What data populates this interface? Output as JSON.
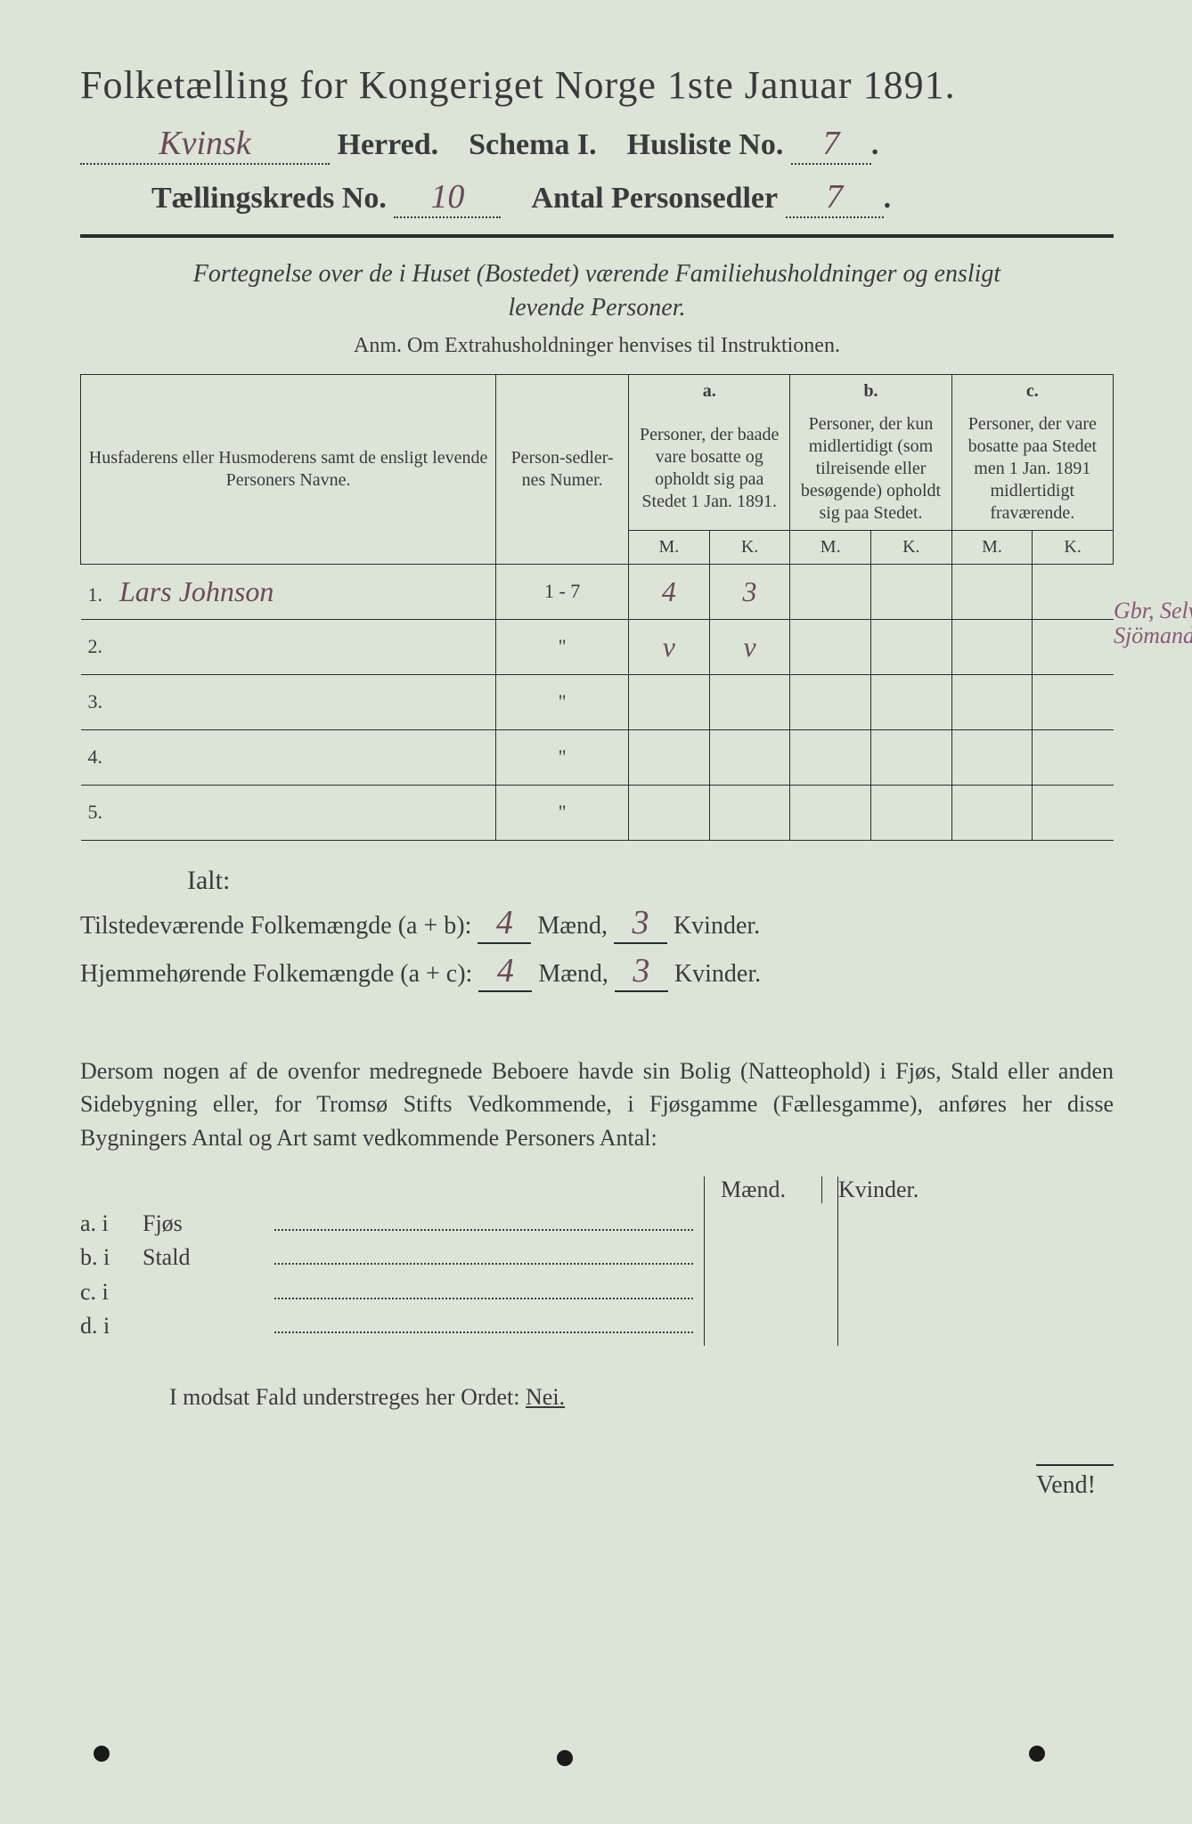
{
  "page": {
    "bg": "#dce4d8",
    "ink": "#3a3a3a",
    "hand_ink": "#6b4a55"
  },
  "header": {
    "title": "Folketælling for Kongeriget Norge 1ste Januar 1891.",
    "herred_hand": "Kvinsk",
    "herred_label": "Herred.",
    "schema": "Schema I.",
    "husliste_label": "Husliste No.",
    "husliste_no": "7",
    "kreds_label": "Tællingskreds No.",
    "kreds_no": "10",
    "sedler_label": "Antal Personsedler",
    "sedler_no": "7"
  },
  "intro": {
    "line1": "Fortegnelse over de i Huset (Bostedet) værende Familiehusholdninger og ensligt",
    "line2": "levende Personer.",
    "anm": "Anm.  Om Extrahusholdninger henvises til Instruktionen."
  },
  "table": {
    "head": {
      "names": "Husfaderens eller Husmoderens samt de ensligt levende Personers Navne.",
      "num": "Person-sedler-nes Numer.",
      "a_top": "a.",
      "a": "Personer, der baade vare bosatte og opholdt sig paa Stedet 1 Jan. 1891.",
      "b_top": "b.",
      "b": "Personer, der kun midlertidigt (som tilreisende eller besøgende) opholdt sig paa Stedet.",
      "c_top": "c.",
      "c": "Personer, der vare bosatte paa Stedet men 1 Jan. 1891 midlertidigt fraværende.",
      "M": "M.",
      "K": "K."
    },
    "rows": [
      {
        "n": "1.",
        "name": "Lars Johnson",
        "num": "1 - 7",
        "aM": "4",
        "aK": "3",
        "bM": "",
        "bK": "",
        "cM": "",
        "cK": "",
        "margin": "Gbr, Selv-\nSjömand"
      },
      {
        "n": "2.",
        "name": "",
        "num": "\"",
        "aM": "v",
        "aK": "v",
        "bM": "",
        "bK": "",
        "cM": "",
        "cK": "",
        "margin": ""
      },
      {
        "n": "3.",
        "name": "",
        "num": "\"",
        "aM": "",
        "aK": "",
        "bM": "",
        "bK": "",
        "cM": "",
        "cK": "",
        "margin": ""
      },
      {
        "n": "4.",
        "name": "",
        "num": "\"",
        "aM": "",
        "aK": "",
        "bM": "",
        "bK": "",
        "cM": "",
        "cK": "",
        "margin": ""
      },
      {
        "n": "5.",
        "name": "",
        "num": "\"",
        "aM": "",
        "aK": "",
        "bM": "",
        "bK": "",
        "cM": "",
        "cK": "",
        "margin": ""
      }
    ]
  },
  "totals": {
    "ialt": "Ialt:",
    "line1_a": "Tilstedeværende Folkemængde (a + b):",
    "line2_a": "Hjemmehørende Folkemængde (a + c):",
    "maend": "Mænd,",
    "kvinder": "Kvinder.",
    "t_m": "4",
    "t_k": "3",
    "h_m": "4",
    "h_k": "3"
  },
  "para": {
    "text": "Dersom nogen af de ovenfor medregnede Beboere havde sin Bolig (Natteophold) i Fjøs, Stald eller anden Sidebygning eller, for Tromsø Stifts Vedkommende, i Fjøsgamme (Fællesgamme), anføres her disse Bygningers Antal og Art samt vedkommende Personers Antal:"
  },
  "fjos": {
    "maend": "Mænd.",
    "kvinder": "Kvinder.",
    "rows": [
      {
        "k": "a.  i",
        "name": "Fjøs"
      },
      {
        "k": "b.  i",
        "name": "Stald"
      },
      {
        "k": "c.  i",
        "name": ""
      },
      {
        "k": "d.  i",
        "name": ""
      }
    ]
  },
  "nei": {
    "text": "I modsat Fald understreges her Ordet:",
    "word": "Nei."
  },
  "vend": "Vend!"
}
